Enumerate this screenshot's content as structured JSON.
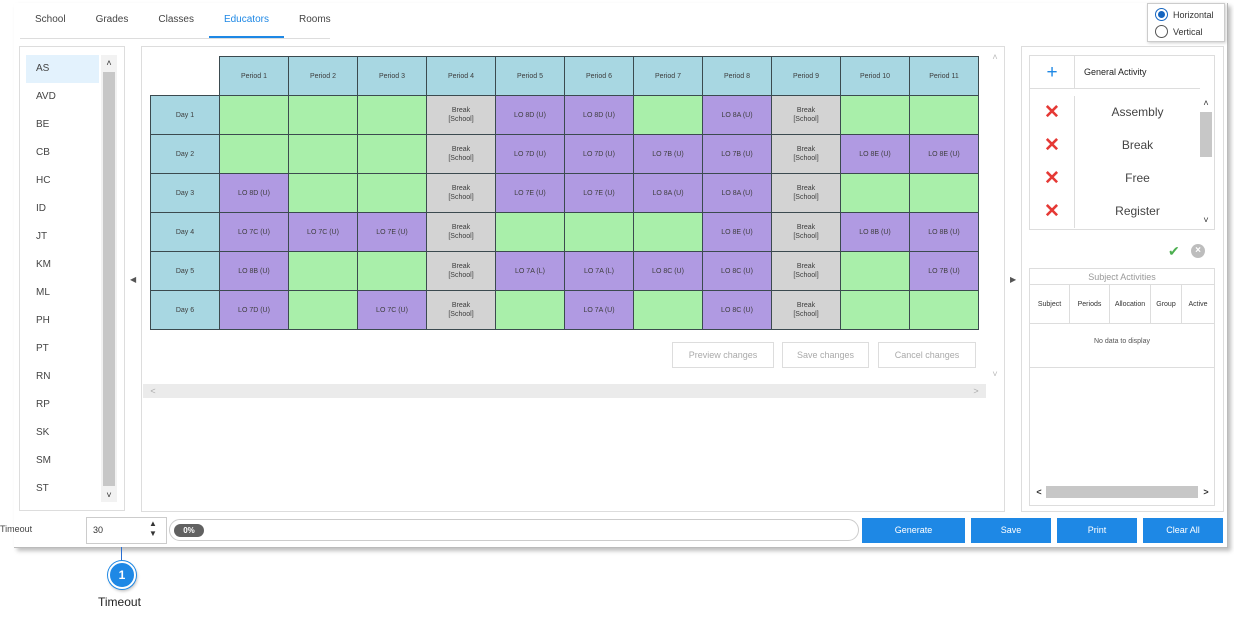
{
  "tabs": [
    "School",
    "Grades",
    "Classes",
    "Educators",
    "Rooms"
  ],
  "active_tab": "Educators",
  "orientation": {
    "options": [
      "Horizontal",
      "Vertical"
    ],
    "selected": "Horizontal"
  },
  "educators": [
    "AS",
    "AVD",
    "BE",
    "CB",
    "HC",
    "ID",
    "JT",
    "KM",
    "ML",
    "PH",
    "PT",
    "RN",
    "RP",
    "SK",
    "SM",
    "ST"
  ],
  "selected_educator": "AS",
  "timetable": {
    "periods": [
      "Period 1",
      "Period 2",
      "Period 3",
      "Period 4",
      "Period 5",
      "Period 6",
      "Period 7",
      "Period 8",
      "Period 9",
      "Period 10",
      "Period 11"
    ],
    "rows": [
      {
        "day": "Day 1",
        "cells": [
          "",
          "",
          "",
          "Break\n[School]",
          "LO 8D (U)",
          "LO 8D (U)",
          "",
          "LO 8A (U)",
          "Break\n[School]",
          "",
          ""
        ]
      },
      {
        "day": "Day 2",
        "cells": [
          "",
          "",
          "",
          "Break\n[School]",
          "LO 7D (U)",
          "LO 7D (U)",
          "LO 7B (U)",
          "LO 7B (U)",
          "Break\n[School]",
          "LO 8E (U)",
          "LO 8E (U)"
        ]
      },
      {
        "day": "Day 3",
        "cells": [
          "LO 8D (U)",
          "",
          "",
          "Break\n[School]",
          "LO 7E (U)",
          "LO 7E (U)",
          "LO 8A (U)",
          "LO 8A (U)",
          "Break\n[School]",
          "",
          ""
        ]
      },
      {
        "day": "Day 4",
        "cells": [
          "LO 7C (U)",
          "LO 7C (U)",
          "LO 7E (U)",
          "Break\n[School]",
          "",
          "",
          "",
          "LO 8E (U)",
          "Break\n[School]",
          "LO 8B (U)",
          "LO 8B (U)"
        ]
      },
      {
        "day": "Day 5",
        "cells": [
          "LO 8B (U)",
          "",
          "",
          "Break\n[School]",
          "LO 7A (L)",
          "LO 7A (L)",
          "LO 8C (U)",
          "LO 8C (U)",
          "Break\n[School]",
          "",
          "LO 7B (U)"
        ]
      },
      {
        "day": "Day 6",
        "cells": [
          "LO 7D (U)",
          "",
          "LO 7C (U)",
          "Break\n[School]",
          "",
          "LO 7A (U)",
          "",
          "LO 8C (U)",
          "Break\n[School]",
          "",
          ""
        ]
      }
    ]
  },
  "change_buttons": {
    "preview": "Preview changes",
    "save": "Save changes",
    "cancel": "Cancel changes"
  },
  "activities": {
    "header": "General Activity",
    "items": [
      "Assembly",
      "Break",
      "Free",
      "Register"
    ]
  },
  "subject_activities": {
    "title": "Subject Activities",
    "columns": [
      "Subject",
      "Periods",
      "Allocation",
      "Group",
      "Active"
    ],
    "empty_text": "No data to display"
  },
  "timeout": {
    "label": "Timeout",
    "value": "30"
  },
  "progress": {
    "label": "0%",
    "value": 0
  },
  "buttons": {
    "generate": "Generate",
    "save": "Save",
    "print": "Print",
    "clear_all": "Clear All"
  },
  "callout": {
    "number": "1",
    "label": "Timeout"
  },
  "colors": {
    "accent": "#1e88e5",
    "header": "#a8d7e2",
    "free": "#a9efaa",
    "lesson": "#b09ae2",
    "break": "#d3d3d3",
    "remove": "#e53935",
    "confirm": "#4caf50"
  }
}
